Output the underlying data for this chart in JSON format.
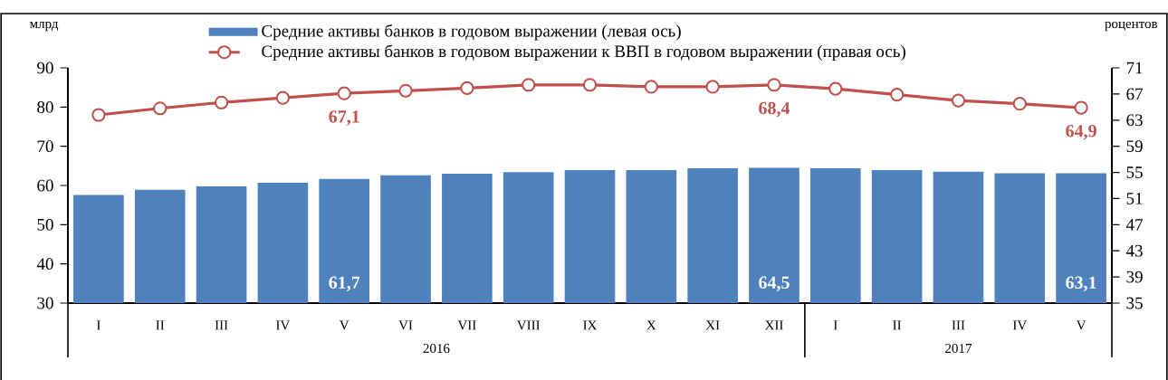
{
  "chart_data": {
    "type": "bar",
    "categories": [
      "I",
      "II",
      "III",
      "IV",
      "V",
      "VI",
      "VII",
      "VIII",
      "IX",
      "X",
      "XI",
      "XII",
      "I",
      "II",
      "III",
      "IV",
      "V"
    ],
    "ylabel": "млрд",
    "y2label": "роцентов",
    "ylim": [
      30,
      90
    ],
    "yticks": [
      30,
      40,
      50,
      60,
      70,
      80,
      90
    ],
    "y2lim": [
      35,
      71
    ],
    "y2ticks": [
      35,
      39,
      43,
      47,
      51,
      55,
      59,
      63,
      67,
      71
    ],
    "legend": "top",
    "series": [
      {
        "name": "Средние активы банков в годовом выражении (левая ось)",
        "color": "#4f81bd",
        "values": [
          57.6,
          58.9,
          59.8,
          60.7,
          61.7,
          62.6,
          63.0,
          63.4,
          63.9,
          63.9,
          64.4,
          64.5,
          64.4,
          63.9,
          63.5,
          63.1,
          63.1
        ],
        "value_labels": [
          null,
          null,
          null,
          null,
          "61,7",
          null,
          null,
          null,
          null,
          null,
          null,
          "64,5",
          null,
          null,
          null,
          null,
          "63,1"
        ]
      },
      {
        "name": "Средние активы банков в годовом выражении к ВВП в годовом выражении (правая ось)",
        "type": "line",
        "axis": "y2",
        "marker": "circle",
        "color": "#c0504d",
        "values": [
          63.8,
          64.8,
          65.7,
          66.4,
          67.1,
          67.5,
          67.9,
          68.4,
          68.4,
          68.1,
          68.1,
          68.4,
          67.8,
          66.9,
          66.0,
          65.5,
          64.9
        ],
        "value_labels": [
          null,
          null,
          null,
          null,
          "67,1",
          null,
          null,
          null,
          null,
          null,
          null,
          "68,4",
          null,
          null,
          null,
          null,
          "64,9"
        ]
      }
    ],
    "annotations": [
      "2016",
      "2017"
    ]
  }
}
